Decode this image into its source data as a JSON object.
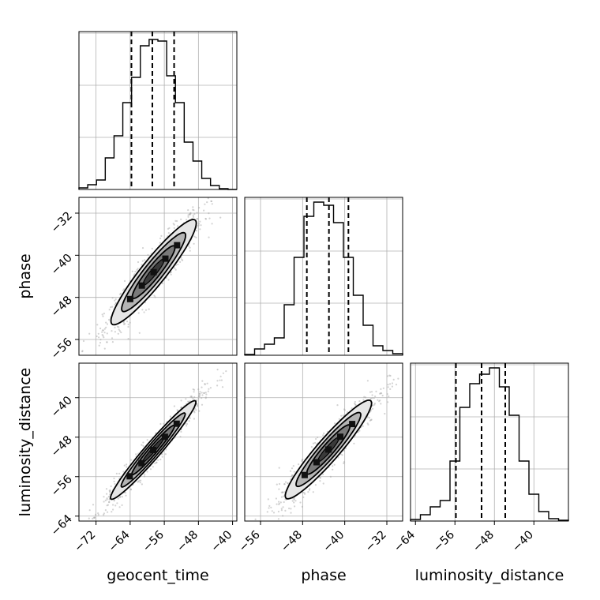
{
  "chart_data": {
    "type": "corner",
    "parameters": [
      "geocent_time",
      "phase",
      "luminosity_distance"
    ],
    "axes_labels": {
      "x": [
        "geocent_time",
        "phase",
        "luminosity_distance"
      ],
      "y": [
        "phase",
        "luminosity_distance"
      ]
    },
    "ranges": {
      "geocent_time": [
        -76,
        -39
      ],
      "phase": [
        -59,
        -29
      ],
      "luminosity_distance": [
        -65,
        -33
      ]
    },
    "ticks": {
      "geocent_time": [
        -72,
        -64,
        -56,
        -48,
        -40
      ],
      "phase": [
        -56,
        -48,
        -40,
        -32
      ],
      "luminosity_distance": [
        -64,
        -56,
        -48,
        -40
      ]
    },
    "tick_labels": {
      "geocent_time": [
        "−72",
        "−64",
        "−56",
        "−48",
        "−40"
      ],
      "phase": [
        "−56",
        "−48",
        "−40",
        "−32"
      ],
      "luminosity_distance": [
        "−64",
        "−56",
        "−48",
        "−40"
      ]
    },
    "quantiles": {
      "geocent_time": [
        -63.7,
        -58.8,
        -53.7
      ],
      "phase": [
        -47.2,
        -43.0,
        -39.3
      ],
      "luminosity_distance": [
        -55.8,
        -50.6,
        -45.8
      ]
    },
    "histograms": {
      "geocent_time": [
        0.01,
        0.03,
        0.06,
        0.2,
        0.34,
        0.55,
        0.71,
        0.91,
        0.95,
        0.94,
        0.72,
        0.55,
        0.3,
        0.18,
        0.07,
        0.025,
        0.005,
        0.0
      ],
      "phase": [
        0.005,
        0.04,
        0.07,
        0.11,
        0.32,
        0.62,
        0.88,
        0.97,
        0.95,
        0.84,
        0.62,
        0.38,
        0.19,
        0.06,
        0.03,
        0.01
      ],
      "luminosity_distance": [
        0.01,
        0.04,
        0.09,
        0.13,
        0.38,
        0.72,
        0.87,
        0.93,
        0.97,
        0.85,
        0.67,
        0.38,
        0.17,
        0.06,
        0.015,
        0.005
      ]
    },
    "density_2d": [
      {
        "x": "geocent_time",
        "y": "phase",
        "mean": [
          -58.5,
          -43.2
        ],
        "sd": [
          5.0,
          5.0
        ],
        "rho": 0.93
      },
      {
        "x": "geocent_time",
        "y": "luminosity_distance",
        "mean": [
          -58.6,
          -50.6
        ],
        "sd": [
          5.0,
          5.0
        ],
        "rho": 0.97
      },
      {
        "x": "phase",
        "y": "luminosity_distance",
        "mean": [
          -43.1,
          -50.5
        ],
        "sd": [
          4.1,
          5.0
        ],
        "rho": 0.94
      }
    ],
    "contour_levels_sigma": [
      0.5,
      1.0,
      1.5,
      2.0
    ],
    "grid": true,
    "colors": {
      "line": "#000000",
      "grid": "#b0b0b0",
      "scatter": "#a8a8a8"
    }
  }
}
